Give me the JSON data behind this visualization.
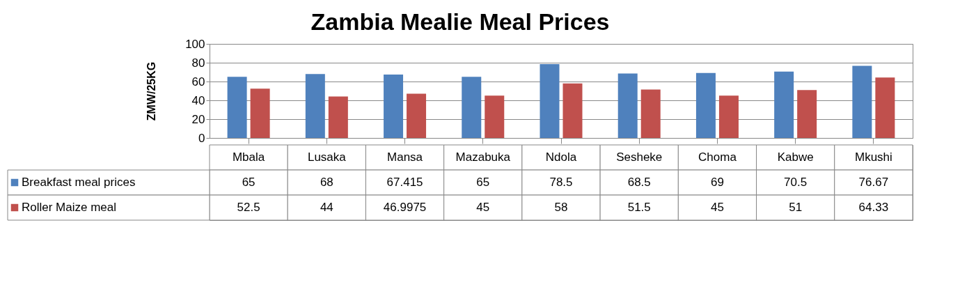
{
  "chart_data": {
    "type": "bar",
    "title": "Zambia Mealie Meal Prices",
    "ylabel": "ZMW/25KG",
    "categories": [
      "Mbala",
      "Lusaka",
      "Mansa",
      "Mazabuka",
      "Ndola",
      "Sesheke",
      "Choma",
      "Kabwe",
      "Mkushi"
    ],
    "series": [
      {
        "name": "Breakfast meal prices",
        "color": "#4f81bd",
        "values": [
          65,
          68,
          67.415,
          65,
          78.5,
          68.5,
          69,
          70.5,
          76.67
        ]
      },
      {
        "name": "Roller Maize meal",
        "color": "#c0504d",
        "values": [
          52.5,
          44,
          46.9975,
          45,
          58,
          51.5,
          45,
          51,
          64.33
        ]
      }
    ],
    "ylim": [
      0,
      100
    ],
    "yticks": [
      0,
      20,
      40,
      60,
      80,
      100
    ],
    "grid": "y",
    "legend": "bottom",
    "data_labels": true
  }
}
